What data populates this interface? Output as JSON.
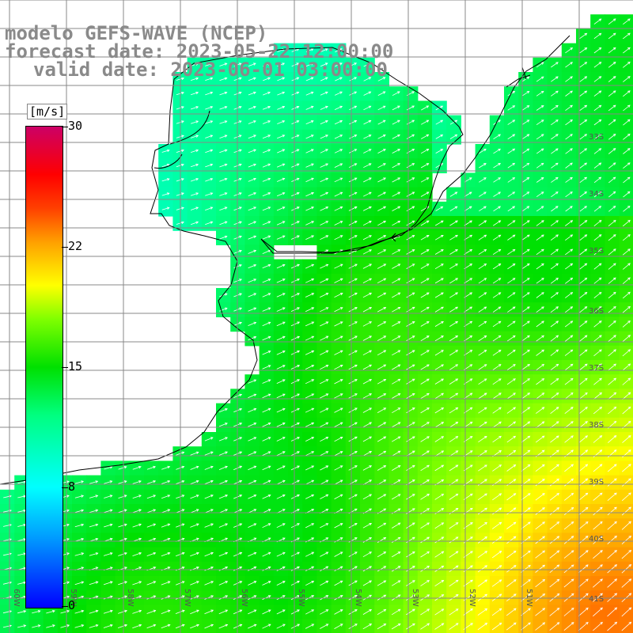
{
  "header": {
    "title": "modelo GEFS-WAVE (NCEP)",
    "forecast": "forecast date: 2023-05-22 12:00:00",
    "valid": "valid date: 2023-06-01 03:00:00"
  },
  "colorbar": {
    "unit": "[m/s]",
    "ticks": [
      "30",
      "22",
      "15",
      "8",
      "0"
    ],
    "colors": [
      "#0000ff",
      "#00a0ff",
      "#00ffff",
      "#00ff80",
      "#00e000",
      "#80ff00",
      "#ffff00",
      "#ffa000",
      "#ff4000",
      "#ff0000",
      "#cc0066"
    ]
  },
  "map": {
    "lat_labels": [
      "33S",
      "34S",
      "35S",
      "36S",
      "37S",
      "38S",
      "39S",
      "40S",
      "41S"
    ],
    "lon_labels": [
      "60W",
      "59W",
      "58W",
      "57W",
      "56W",
      "55W",
      "54W",
      "53W",
      "52W",
      "51W"
    ],
    "land_color": "#ffffff",
    "grid_color": "#888888",
    "arrow_color": "#ffffff"
  }
}
